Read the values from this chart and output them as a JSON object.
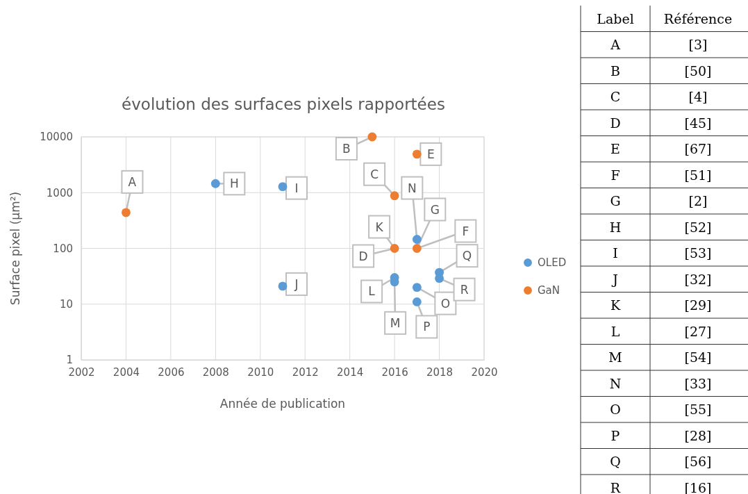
{
  "chart_data": [
    {
      "type": "scatter",
      "title": "évolution des surfaces pixels rapportées",
      "xlabel": "Année de publication",
      "ylabel": "Surface pixel (µm²)",
      "xlim": [
        2002,
        2020
      ],
      "xticks": [
        2002,
        2004,
        2006,
        2008,
        2010,
        2012,
        2014,
        2016,
        2018,
        2020
      ],
      "ylim": [
        1,
        10000
      ],
      "yticks": [
        1,
        10,
        100,
        1000,
        10000
      ],
      "log": "y",
      "grid": true,
      "legend": "right",
      "marker": "circle",
      "series": [
        {
          "name": "OLED",
          "color": "#5b9bd5",
          "x": [
            2008,
            2011,
            2011,
            2016,
            2016,
            2017,
            2017,
            2017,
            2018,
            2018
          ],
          "values": [
            1450,
            1280,
            21,
            30,
            25,
            145,
            20,
            11,
            37,
            29
          ]
        },
        {
          "name": "GaN",
          "color": "#ed7d31",
          "x": [
            2004,
            2015,
            2016,
            2016,
            2017,
            2017
          ],
          "values": [
            440,
            10000,
            880,
            100,
            4900,
            100
          ]
        }
      ],
      "annotations": [
        {
          "text": "A",
          "x": 2004,
          "y": 440
        },
        {
          "text": "B",
          "x": 2015,
          "y": 10000
        },
        {
          "text": "C",
          "x": 2016,
          "y": 880
        },
        {
          "text": "D",
          "x": 2016,
          "y": 100
        },
        {
          "text": "E",
          "x": 2017,
          "y": 4900
        },
        {
          "text": "F",
          "x": 2017,
          "y": 100
        },
        {
          "text": "G",
          "x": 2017,
          "y": 100
        },
        {
          "text": "H",
          "x": 2008,
          "y": 1450
        },
        {
          "text": "I",
          "x": 2011,
          "y": 1280
        },
        {
          "text": "J",
          "x": 2011,
          "y": 21
        },
        {
          "text": "K",
          "x": 2016,
          "y": 100
        },
        {
          "text": "L",
          "x": 2016,
          "y": 30
        },
        {
          "text": "M",
          "x": 2016,
          "y": 25
        },
        {
          "text": "N",
          "x": 2017,
          "y": 145
        },
        {
          "text": "O",
          "x": 2017,
          "y": 20
        },
        {
          "text": "P",
          "x": 2017,
          "y": 11
        },
        {
          "text": "Q",
          "x": 2018,
          "y": 37
        },
        {
          "text": "R",
          "x": 2018,
          "y": 29
        }
      ]
    },
    {
      "type": "other",
      "annotations": [
        "Label",
        "Référence",
        "A",
        "[3]",
        "B",
        "[50]",
        "C",
        "[4]",
        "D",
        "[45]",
        "E",
        "[67]",
        "F",
        "[51]",
        "G",
        "[2]",
        "H",
        "[52]",
        "I",
        "[53]",
        "J",
        "[32]",
        "K",
        "[29]",
        "L",
        "[27]",
        "M",
        "[54]",
        "N",
        "[33]",
        "O",
        "[55]",
        "P",
        "[28]",
        "Q",
        "[56]",
        "R",
        "[16]"
      ]
    }
  ]
}
